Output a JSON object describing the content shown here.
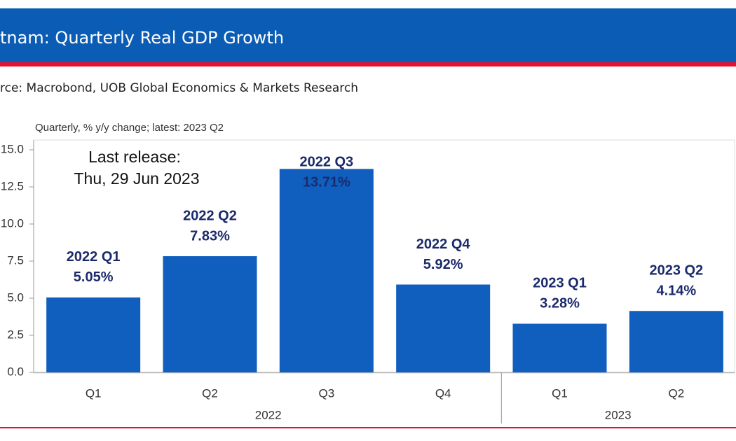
{
  "chart_data": {
    "type": "bar",
    "title": "tnam: Quarterly Real GDP Growth",
    "source": "rce: Macrobond, UOB Global Economics & Markets Research",
    "subtitle": "Quarterly, % y/y change; latest: 2023 Q2",
    "annotation": [
      "Last release:",
      "Thu, 29 Jun 2023"
    ],
    "categories": [
      "Q1",
      "Q2",
      "Q3",
      "Q4",
      "Q1",
      "Q2"
    ],
    "groups": [
      {
        "label": "2022",
        "span": [
          0,
          3
        ]
      },
      {
        "label": "2023",
        "span": [
          4,
          5
        ]
      }
    ],
    "point_labels": [
      "2022 Q1",
      "2022 Q2",
      "2022 Q3",
      "2022 Q4",
      "2023 Q1",
      "2023 Q2"
    ],
    "values": [
      5.05,
      7.83,
      13.71,
      5.92,
      3.28,
      4.14
    ],
    "value_labels": [
      "5.05%",
      "7.83%",
      "13.71%",
      "5.92%",
      "3.28%",
      "4.14%"
    ],
    "color": "#105fbf",
    "ylim": [
      0,
      15
    ],
    "yticks": [
      {
        "value": 0,
        "label": "0.0"
      },
      {
        "value": 2.5,
        "label": "2.5"
      },
      {
        "value": 5,
        "label": "5.0"
      },
      {
        "value": 7.5,
        "label": "7.5"
      },
      {
        "value": 10,
        "label": "10.0"
      },
      {
        "value": 12.5,
        "label": "12.5"
      },
      {
        "value": 15,
        "label": "15.0"
      }
    ]
  }
}
